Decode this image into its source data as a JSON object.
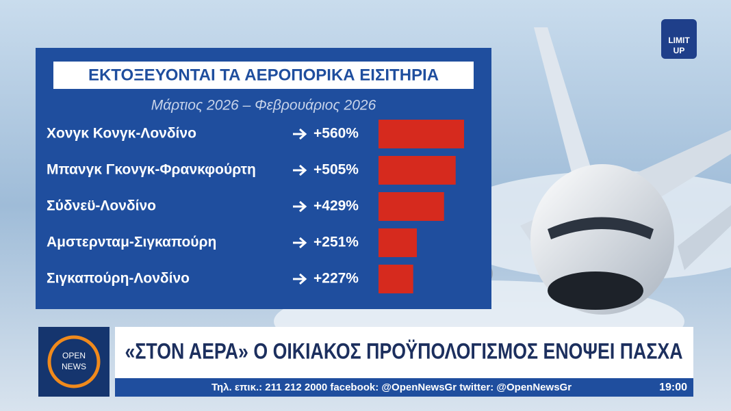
{
  "chart_data": {
    "type": "bar",
    "orientation": "horizontal",
    "title": "ΕΚΤΟΞΕΥΟΝΤΑΙ ΤΑ ΑΕΡΟΠΟΡΙΚΑ ΕΙΣΙΤΗΡΙΑ",
    "subtitle": "Μάρτιος 2026 – Φεβρουάριος 2026",
    "categories": [
      "Χονγκ Κονγκ-Λονδίνο",
      "Μπανγκ Γκονγκ-Φρανκφούρτη",
      "Σύδνεϋ-Λονδίνο",
      "Αμστερνταμ-Σιγκαπούρη",
      "Σιγκαπούρη-Λονδίνο"
    ],
    "values": [
      560,
      505,
      429,
      251,
      227
    ],
    "value_labels": [
      "+560%",
      "+505%",
      "+429%",
      "+251%",
      "+227%"
    ],
    "color": "#d62a1e"
  },
  "channel_logo": {
    "line1": "LIMIT",
    "line2": "UP"
  },
  "news_logo": {
    "line1": "OPEN",
    "line2": "NEWS"
  },
  "headline": "«ΣΤΟΝ ΑΕΡΑ» Ο ΟΙΚΙΑΚΟΣ ΠΡΟΫΠΟΛΟΓΙΣΜΟΣ ΕΝΟΨΕΙ ΠΑΣΧΑ",
  "ticker": "Τηλ. επικ.: 211 212 2000 facebook: @OpenNewsGr twitter: @OpenNewsGr",
  "clock": "19:00"
}
